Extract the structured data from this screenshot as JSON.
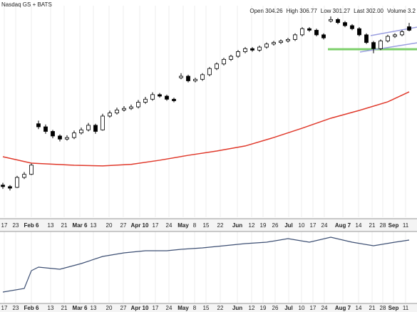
{
  "chart_data": {
    "type": "candlestick",
    "exchange": "Nasdaq GS + BATS",
    "header": [
      "Open 304.26",
      "High 306.77",
      "Low 301.27",
      "Last 302.00",
      "Volume 3.2"
    ],
    "up_color": "#ffffff",
    "down_color": "#000000",
    "ylim": [
      180,
      318
    ],
    "xlim": [
      -0.4,
      58.1
    ],
    "ohlc": [
      [
        201,
        202.5,
        198.5,
        200
      ],
      [
        200,
        201,
        197.5,
        199
      ],
      [
        199.5,
        207,
        199,
        206
      ],
      [
        206,
        209.5,
        205,
        208
      ],
      [
        208,
        215,
        207.5,
        214
      ],
      [
        241,
        243,
        237.5,
        239
      ],
      [
        239,
        240.5,
        234.5,
        236
      ],
      [
        236,
        237,
        231.5,
        233
      ],
      [
        233,
        234,
        229.5,
        231
      ],
      [
        231,
        233.5,
        230,
        232
      ],
      [
        232,
        236.5,
        231,
        235
      ],
      [
        235,
        238.5,
        234,
        237
      ],
      [
        237,
        241.5,
        236,
        240
      ],
      [
        240,
        241,
        234.5,
        236
      ],
      [
        237,
        247.5,
        236.5,
        246
      ],
      [
        246,
        249.5,
        245,
        248
      ],
      [
        248,
        251.5,
        247,
        250
      ],
      [
        250,
        252.5,
        249,
        251
      ],
      [
        251,
        253.5,
        250,
        252
      ],
      [
        252,
        256.5,
        251,
        255
      ],
      [
        255,
        258.5,
        254,
        257
      ],
      [
        257,
        261.5,
        256,
        260
      ],
      [
        260,
        261,
        258,
        259
      ],
      [
        259,
        260,
        256,
        257
      ],
      [
        257,
        258,
        255,
        256
      ],
      [
        271,
        274,
        270,
        272
      ],
      [
        272,
        273,
        268,
        269
      ],
      [
        269,
        271,
        268,
        270
      ],
      [
        270,
        274,
        269,
        273
      ],
      [
        273,
        278,
        272,
        277
      ],
      [
        277,
        281,
        276,
        280
      ],
      [
        280,
        284,
        279,
        283
      ],
      [
        283,
        286,
        282,
        285
      ],
      [
        285,
        289,
        284,
        288
      ],
      [
        288,
        291,
        287,
        290
      ],
      [
        290,
        291,
        288,
        289
      ],
      [
        289,
        292,
        288,
        291
      ],
      [
        291,
        294,
        290,
        293
      ],
      [
        293,
        295,
        292,
        294
      ],
      [
        294,
        296,
        293,
        295
      ],
      [
        295,
        297,
        294,
        296
      ],
      [
        296,
        300,
        295,
        299
      ],
      [
        299,
        304,
        298,
        303
      ],
      [
        303,
        304,
        301,
        302
      ],
      [
        302,
        303,
        298,
        299
      ],
      [
        299,
        300,
        296,
        297
      ],
      [
        308,
        311,
        307,
        309
      ],
      [
        309,
        310,
        306,
        307
      ],
      [
        307,
        308,
        304,
        305
      ],
      [
        305,
        306,
        302,
        303
      ],
      [
        303,
        304,
        298,
        299
      ],
      [
        299,
        300,
        293,
        294
      ],
      [
        294,
        295,
        287,
        290
      ],
      [
        290,
        296,
        289,
        295
      ],
      [
        295,
        299,
        294,
        298
      ],
      [
        298,
        300,
        297,
        299
      ],
      [
        299,
        302,
        298,
        301
      ],
      [
        304.26,
        306.77,
        301.27,
        302
      ]
    ],
    "xticks": [
      {
        "value": 0.2,
        "label": "17"
      },
      {
        "value": 1.8,
        "label": "23"
      },
      {
        "value": 4,
        "label": "Feb 6"
      },
      {
        "value": 6.7,
        "label": "13"
      },
      {
        "value": 8.6,
        "label": "21"
      },
      {
        "value": 10.8,
        "label": "Mar 6"
      },
      {
        "value": 12.7,
        "label": "13"
      },
      {
        "value": 14.9,
        "label": "20"
      },
      {
        "value": 16.9,
        "label": "27"
      },
      {
        "value": 19.2,
        "label": "Apr 10"
      },
      {
        "value": 21.4,
        "label": "17"
      },
      {
        "value": 23.3,
        "label": "24"
      },
      {
        "value": 25.3,
        "label": "May"
      },
      {
        "value": 26.9,
        "label": "8"
      },
      {
        "value": 28.5,
        "label": "15"
      },
      {
        "value": 30.5,
        "label": "22"
      },
      {
        "value": 32.9,
        "label": "Jun"
      },
      {
        "value": 34.9,
        "label": "12"
      },
      {
        "value": 36.5,
        "label": "19"
      },
      {
        "value": 38.2,
        "label": "26"
      },
      {
        "value": 40.1,
        "label": "Jul"
      },
      {
        "value": 41.9,
        "label": "10"
      },
      {
        "value": 43.5,
        "label": "17"
      },
      {
        "value": 45.1,
        "label": "24"
      },
      {
        "value": 47.7,
        "label": "Aug 7"
      },
      {
        "value": 49.9,
        "label": "14"
      },
      {
        "value": 51.8,
        "label": "21"
      },
      {
        "value": 53.3,
        "label": "28"
      },
      {
        "value": 54.8,
        "label": "Sep"
      },
      {
        "value": 56.5,
        "label": "11"
      }
    ],
    "moving_average": {
      "color": "#e0392b",
      "x": [
        0,
        4,
        10,
        14,
        18,
        22,
        26,
        30,
        34,
        38,
        42,
        46,
        50,
        54,
        57
      ],
      "values": [
        219.5,
        215.3,
        213.9,
        213.5,
        214.5,
        217.2,
        220.4,
        223.2,
        226.5,
        232.0,
        238.1,
        244.6,
        249.7,
        255.3,
        261.8
      ]
    },
    "overlays": [
      {
        "color": "#7ccf6a",
        "width": 3,
        "x": [
          45.6,
          58.1
        ],
        "values": [
          289.6,
          289.6
        ]
      },
      {
        "color": "#9a9ee0",
        "width": 1.5,
        "x": [
          51.6,
          58.1
        ],
        "values": [
          298.5,
          304
        ]
      },
      {
        "color": "#9a9ee0",
        "width": 1.5,
        "x": [
          50.1,
          58.1
        ],
        "values": [
          287.8,
          293.8
        ]
      }
    ],
    "lower_panel": {
      "type": "line",
      "color": "#3d4f73",
      "ylim": [
        0,
        100
      ],
      "x": [
        0,
        3,
        4,
        5,
        8,
        11,
        14,
        17,
        20,
        23,
        25,
        28,
        31,
        34,
        37,
        40,
        43,
        46,
        49,
        52,
        55,
        57
      ],
      "values": [
        15,
        20,
        45,
        50,
        47,
        55,
        65,
        70,
        73,
        73,
        75,
        77,
        80,
        83,
        85,
        90,
        85,
        92,
        85,
        80,
        85,
        88
      ]
    }
  }
}
